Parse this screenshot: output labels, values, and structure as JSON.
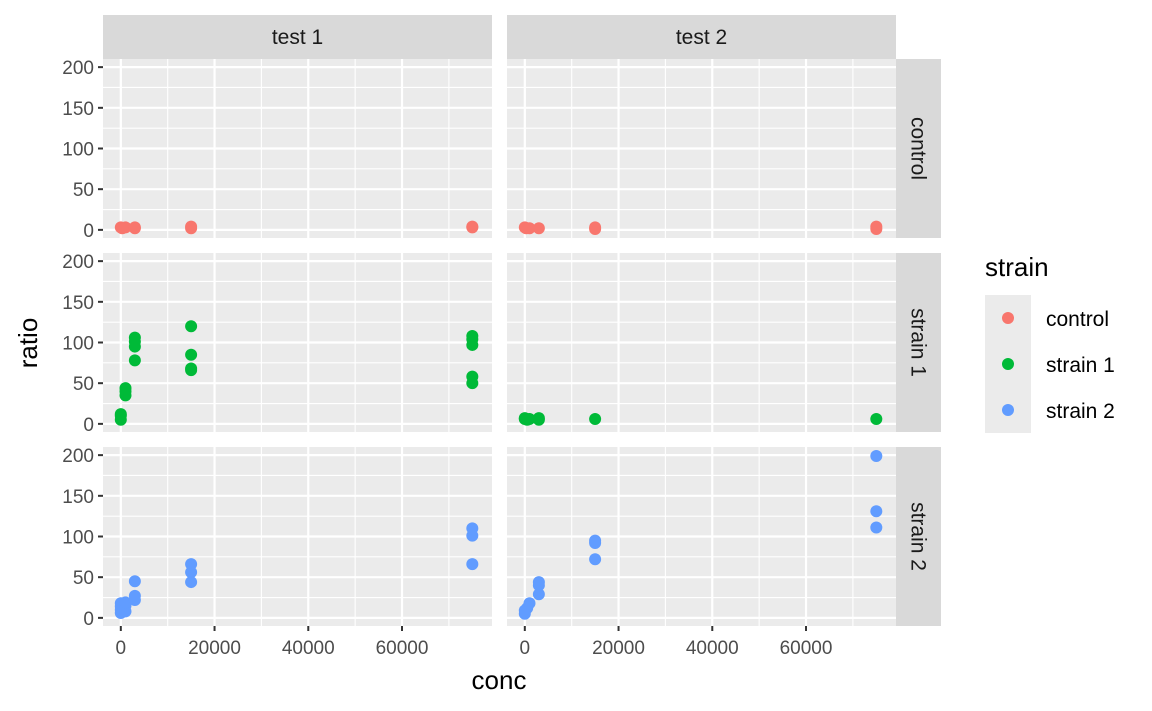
{
  "chart_data": {
    "type": "scatter",
    "facet": {
      "cols": [
        "test 1",
        "test 2"
      ],
      "rows": [
        "control",
        "strain 1",
        "strain 2"
      ]
    },
    "xlabel": "conc",
    "ylabel": "ratio",
    "x_ticks": [
      0,
      20000,
      40000,
      60000
    ],
    "x_tick_labels": [
      "0",
      "20000",
      "40000",
      "60000"
    ],
    "y_ticks": [
      0,
      50,
      100,
      150,
      200
    ],
    "y_tick_labels": [
      "0",
      "50",
      "100",
      "150",
      "200"
    ],
    "xlim": [
      -3800,
      79200
    ],
    "ylim": [
      -10,
      210
    ],
    "legend": {
      "title": "strain",
      "position": "right",
      "items": [
        {
          "label": "control",
          "color": "#F8766D"
        },
        {
          "label": "strain 1",
          "color": "#00BA38"
        },
        {
          "label": "strain 2",
          "color": "#619CFF"
        }
      ]
    },
    "panel_background": "#EBEBEB",
    "strip_background": "#D9D9D9",
    "grid": true,
    "panels": [
      {
        "col": 0,
        "row": 0,
        "color": "#F8766D",
        "points": [
          {
            "x": 0,
            "y": 3
          },
          {
            "x": 300,
            "y": 2
          },
          {
            "x": 1000,
            "y": 3
          },
          {
            "x": 3000,
            "y": 2
          },
          {
            "x": 3000,
            "y": 3
          },
          {
            "x": 15000,
            "y": 2
          },
          {
            "x": 15000,
            "y": 4
          },
          {
            "x": 75000,
            "y": 3
          },
          {
            "x": 75000,
            "y": 4
          }
        ]
      },
      {
        "col": 1,
        "row": 0,
        "color": "#F8766D",
        "points": [
          {
            "x": 0,
            "y": 3
          },
          {
            "x": 300,
            "y": 2
          },
          {
            "x": 1000,
            "y": 2
          },
          {
            "x": 3000,
            "y": 2
          },
          {
            "x": 15000,
            "y": 1
          },
          {
            "x": 15000,
            "y": 3
          },
          {
            "x": 75000,
            "y": 1
          },
          {
            "x": 75000,
            "y": 4
          }
        ]
      },
      {
        "col": 0,
        "row": 1,
        "color": "#00BA38",
        "points": [
          {
            "x": 0,
            "y": 5
          },
          {
            "x": 0,
            "y": 10
          },
          {
            "x": 0,
            "y": 12
          },
          {
            "x": 1000,
            "y": 35
          },
          {
            "x": 1000,
            "y": 40
          },
          {
            "x": 1000,
            "y": 44
          },
          {
            "x": 3000,
            "y": 78
          },
          {
            "x": 3000,
            "y": 95
          },
          {
            "x": 3000,
            "y": 101
          },
          {
            "x": 3000,
            "y": 106
          },
          {
            "x": 15000,
            "y": 66
          },
          {
            "x": 15000,
            "y": 68
          },
          {
            "x": 15000,
            "y": 85
          },
          {
            "x": 15000,
            "y": 120
          },
          {
            "x": 75000,
            "y": 50
          },
          {
            "x": 75000,
            "y": 58
          },
          {
            "x": 75000,
            "y": 97
          },
          {
            "x": 75000,
            "y": 104
          },
          {
            "x": 75000,
            "y": 108
          }
        ]
      },
      {
        "col": 1,
        "row": 1,
        "color": "#00BA38",
        "points": [
          {
            "x": 0,
            "y": 6
          },
          {
            "x": 0,
            "y": 7
          },
          {
            "x": 500,
            "y": 5
          },
          {
            "x": 1000,
            "y": 6
          },
          {
            "x": 3000,
            "y": 5
          },
          {
            "x": 3000,
            "y": 7
          },
          {
            "x": 15000,
            "y": 6
          },
          {
            "x": 75000,
            "y": 6
          }
        ]
      },
      {
        "col": 0,
        "row": 2,
        "color": "#619CFF",
        "points": [
          {
            "x": 0,
            "y": 6
          },
          {
            "x": 0,
            "y": 10
          },
          {
            "x": 0,
            "y": 14
          },
          {
            "x": 0,
            "y": 18
          },
          {
            "x": 1000,
            "y": 8
          },
          {
            "x": 1000,
            "y": 15
          },
          {
            "x": 1000,
            "y": 19
          },
          {
            "x": 3000,
            "y": 22
          },
          {
            "x": 3000,
            "y": 27
          },
          {
            "x": 3000,
            "y": 45
          },
          {
            "x": 15000,
            "y": 44
          },
          {
            "x": 15000,
            "y": 56
          },
          {
            "x": 15000,
            "y": 66
          },
          {
            "x": 75000,
            "y": 66
          },
          {
            "x": 75000,
            "y": 101
          },
          {
            "x": 75000,
            "y": 110
          }
        ]
      },
      {
        "col": 1,
        "row": 2,
        "color": "#619CFF",
        "points": [
          {
            "x": 0,
            "y": 5
          },
          {
            "x": 0,
            "y": 9
          },
          {
            "x": 500,
            "y": 12
          },
          {
            "x": 1000,
            "y": 18
          },
          {
            "x": 3000,
            "y": 29
          },
          {
            "x": 3000,
            "y": 40
          },
          {
            "x": 3000,
            "y": 44
          },
          {
            "x": 15000,
            "y": 72
          },
          {
            "x": 15000,
            "y": 92
          },
          {
            "x": 15000,
            "y": 95
          },
          {
            "x": 75000,
            "y": 111
          },
          {
            "x": 75000,
            "y": 131
          },
          {
            "x": 75000,
            "y": 199
          }
        ]
      }
    ]
  }
}
